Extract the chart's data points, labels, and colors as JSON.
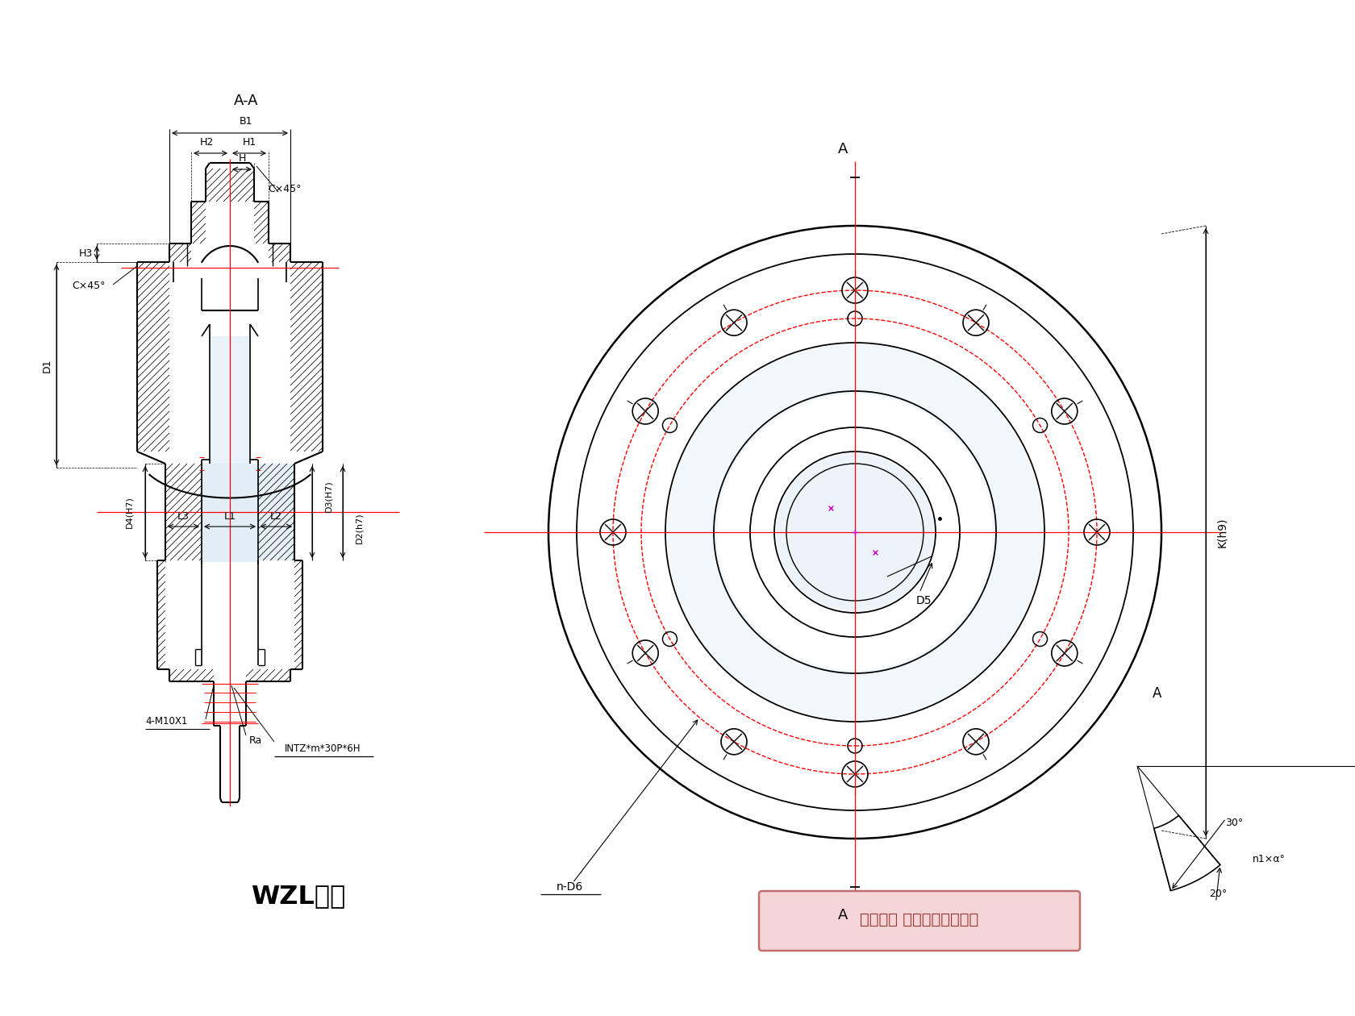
{
  "bg_color": "#ffffff",
  "lc": "#000000",
  "rc": "#ff0000",
  "mc": "#cc00cc",
  "title": "WZL系列",
  "copyright": "版权所有 侵权必被严厉追究",
  "AA": "A-A",
  "A": "A",
  "B1": "B1",
  "H2": "H2",
  "H1": "H1",
  "H": "H",
  "H3": "H3",
  "CX45a": "C×45°",
  "CX45b": "C×45°",
  "L3": "L3",
  "L1": "L1",
  "L2": "L2",
  "D1": "D1",
  "D4H7": "D4(H7)",
  "D3H7": "D3(H7)",
  "D2h7": "D2(h7)",
  "bolts": "4-M10X1",
  "Ra": "Ra",
  "thread": "INTZ*m*30P*6H",
  "D5": "D5",
  "nD6": "n-D6",
  "Kh9": "K(h9)",
  "a20": "20°",
  "a30": "30°",
  "n1a": "n1×α°"
}
